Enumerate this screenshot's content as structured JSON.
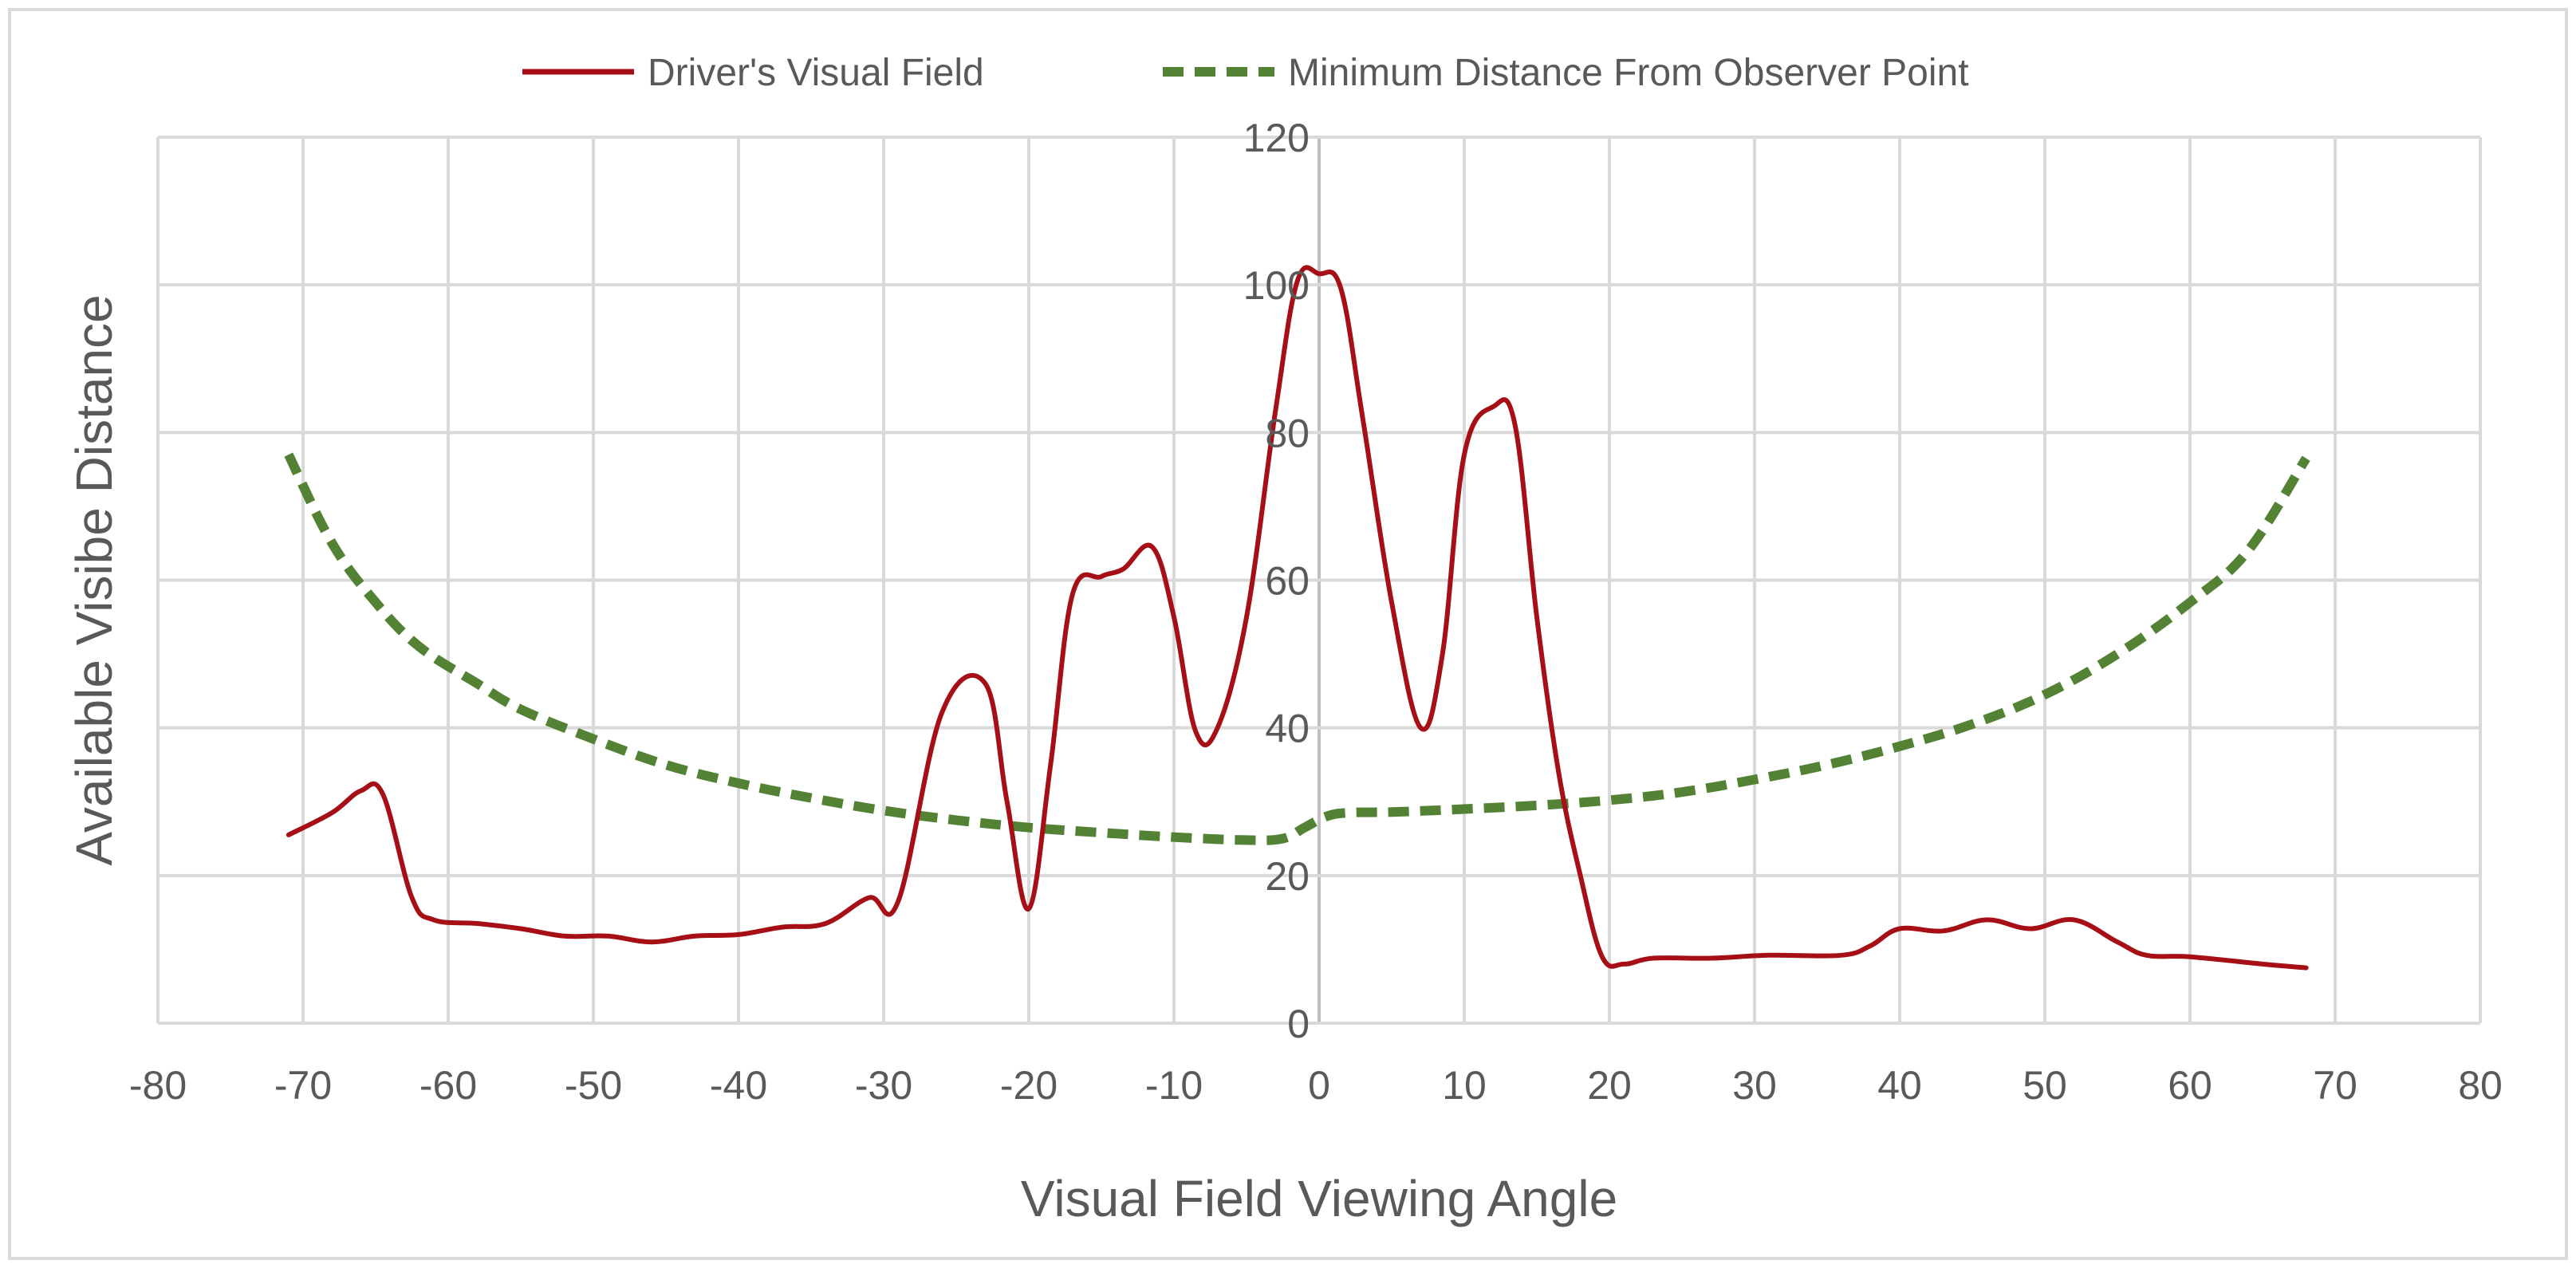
{
  "chart_data": {
    "type": "line",
    "title": "",
    "xlabel": "Visual Field Viewing Angle",
    "ylabel": "Available Visibe Distance",
    "xlim": [
      -80,
      80
    ],
    "ylim": [
      0,
      120
    ],
    "x_ticks": [
      -80,
      -70,
      -60,
      -50,
      -40,
      -30,
      -20,
      -10,
      0,
      10,
      20,
      30,
      40,
      50,
      60,
      70,
      80
    ],
    "y_ticks": [
      0,
      20,
      40,
      60,
      80,
      100,
      120
    ],
    "x_tick_labels": [
      "-80",
      "-70",
      "-60",
      "-50",
      "-40",
      "-30",
      "-20",
      "-10",
      "0",
      "10",
      "20",
      "30",
      "40",
      "50",
      "60",
      "70",
      "80"
    ],
    "y_tick_labels": [
      "0",
      "20",
      "40",
      "60",
      "80",
      "100",
      "120"
    ],
    "grid": true,
    "legend_position": "top",
    "series": [
      {
        "name": "Driver's Visual Field",
        "color": "#a50f15",
        "style": "solid",
        "points": [
          [
            -71,
            25.5
          ],
          [
            -68,
            28.5
          ],
          [
            -66,
            31.5
          ],
          [
            -64.5,
            31
          ],
          [
            -62.5,
            17
          ],
          [
            -61,
            14
          ],
          [
            -58,
            13.5
          ],
          [
            -55,
            12.8
          ],
          [
            -52,
            11.8
          ],
          [
            -49,
            11.8
          ],
          [
            -46,
            11
          ],
          [
            -43,
            11.8
          ],
          [
            -40,
            12
          ],
          [
            -37,
            13
          ],
          [
            -34,
            13.5
          ],
          [
            -31,
            17
          ],
          [
            -29,
            16.5
          ],
          [
            -26,
            42
          ],
          [
            -23,
            46
          ],
          [
            -21.5,
            30
          ],
          [
            -20,
            15.5
          ],
          [
            -18.5,
            35
          ],
          [
            -17,
            58
          ],
          [
            -15,
            60.5
          ],
          [
            -13.5,
            61.5
          ],
          [
            -11.5,
            64.5
          ],
          [
            -10,
            55
          ],
          [
            -8.5,
            39.5
          ],
          [
            -7,
            40
          ],
          [
            -5,
            55
          ],
          [
            -3,
            83
          ],
          [
            -1.5,
            100.5
          ],
          [
            0,
            101.5
          ],
          [
            1.5,
            99.5
          ],
          [
            3,
            82
          ],
          [
            5,
            57
          ],
          [
            7,
            40
          ],
          [
            8.5,
            50
          ],
          [
            10,
            77
          ],
          [
            12,
            83.5
          ],
          [
            13.5,
            81
          ],
          [
            15,
            55
          ],
          [
            16.5,
            34
          ],
          [
            18,
            20
          ],
          [
            19.5,
            9
          ],
          [
            21,
            8
          ],
          [
            23,
            8.8
          ],
          [
            27,
            8.8
          ],
          [
            31,
            9.2
          ],
          [
            36,
            9.2
          ],
          [
            38,
            10.5
          ],
          [
            40,
            12.8
          ],
          [
            43,
            12.5
          ],
          [
            46,
            14
          ],
          [
            49,
            12.8
          ],
          [
            52,
            14
          ],
          [
            55,
            11
          ],
          [
            57,
            9.2
          ],
          [
            60,
            9
          ],
          [
            65,
            8
          ],
          [
            68,
            7.5
          ]
        ]
      },
      {
        "name": "Minimum Distance From Observer Point",
        "color": "#548235",
        "style": "dashed",
        "points": [
          [
            -71,
            77
          ],
          [
            -68,
            65
          ],
          [
            -65,
            57
          ],
          [
            -62,
            51
          ],
          [
            -58,
            46
          ],
          [
            -55,
            42.5
          ],
          [
            -50,
            38.5
          ],
          [
            -45,
            35
          ],
          [
            -40,
            32.5
          ],
          [
            -35,
            30.5
          ],
          [
            -30,
            28.8
          ],
          [
            -25,
            27.5
          ],
          [
            -20,
            26.5
          ],
          [
            -15,
            25.8
          ],
          [
            -10,
            25.2
          ],
          [
            -5,
            24.8
          ],
          [
            -2.5,
            25
          ],
          [
            -1,
            26.5
          ],
          [
            0.5,
            28
          ],
          [
            2,
            28.5
          ],
          [
            5,
            28.6
          ],
          [
            10,
            29
          ],
          [
            15,
            29.5
          ],
          [
            20,
            30.2
          ],
          [
            25,
            31.3
          ],
          [
            30,
            33
          ],
          [
            35,
            35
          ],
          [
            40,
            37.5
          ],
          [
            45,
            40.5
          ],
          [
            50,
            44.5
          ],
          [
            55,
            50
          ],
          [
            60,
            57
          ],
          [
            64,
            64
          ],
          [
            68,
            76.5
          ]
        ]
      }
    ]
  }
}
